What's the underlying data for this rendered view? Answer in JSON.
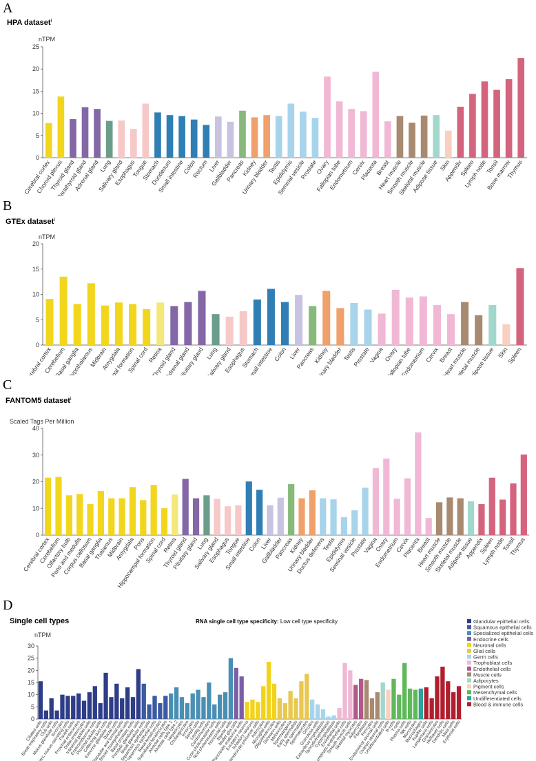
{
  "panels": [
    {
      "letter": "A",
      "title": "HPA dataset",
      "title_sup": "i"
    },
    {
      "letter": "B",
      "title": "GTEx dataset",
      "title_sup": "i"
    },
    {
      "letter": "C",
      "title": "FANTOM5 dataset",
      "title_sup": "i"
    },
    {
      "letter": "D",
      "title": "Single cell types"
    }
  ],
  "panel_d_header": {
    "label": "RNA single cell type specificity:",
    "value": "Low cell type specificity"
  },
  "colors": {
    "brain": "#f2d61e",
    "brain_light": "#f6e77a",
    "endocrine": "#8467a6",
    "lung": "#6a9d8a",
    "proximal_gi": "#f6c8c8",
    "gi": "#2f7fb5",
    "liver": "#c7c3e0",
    "pancreas": "#86b97a",
    "kidney": "#f0a06a",
    "male": "#a7d4eb",
    "female": "#f0b8d4",
    "muscle": "#a88a70",
    "adipose": "#a2d7cc",
    "skin": "#f8cfc0",
    "lymphoid": "#d4647e"
  },
  "chart_data": [
    {
      "type": "bar",
      "title": "HPA dataset",
      "ylabel": "nTPM",
      "ylim": [
        0,
        25
      ],
      "yticks": [
        0,
        5,
        10,
        15,
        20,
        25
      ],
      "grid": false,
      "categories": [
        "Cerebral cortex",
        "Choroid plexus",
        "Thyroid gland",
        "Parathyroid gland",
        "Adrenal gland",
        "Lung",
        "Salivary gland",
        "Esophagus",
        "Tongue",
        "Stomach",
        "Duodenum",
        "Small intestine",
        "Colon",
        "Rectum",
        "Liver",
        "Gallbladder",
        "Pancreas",
        "Kidney",
        "Urinary bladder",
        "Testis",
        "Epididymis",
        "Seminal vesicle",
        "Prostate",
        "Ovary",
        "Fallopian tube",
        "Endometrium",
        "Cervix",
        "Placenta",
        "Breast",
        "Heart muscle",
        "Smooth muscle",
        "Skeletal muscle",
        "Adipose tissue",
        "Skin",
        "Appendix",
        "Spleen",
        "Lymph node",
        "Tonsil",
        "Bone marrow",
        "Thymus"
      ],
      "values": [
        7.8,
        13.8,
        8.7,
        11.4,
        11.0,
        8.3,
        8.4,
        6.5,
        12.2,
        10.2,
        9.6,
        9.4,
        8.6,
        7.4,
        9.3,
        8.1,
        10.6,
        9.1,
        9.6,
        9.4,
        12.2,
        10.4,
        9.0,
        18.3,
        12.7,
        11.0,
        10.5,
        19.4,
        8.2,
        9.4,
        7.9,
        9.5,
        9.6,
        6.1,
        11.5,
        14.4,
        17.2,
        15.3,
        17.7,
        22.5
      ],
      "bar_colors": [
        "#f2d61e",
        "#f2d61e",
        "#8467a6",
        "#8467a6",
        "#8467a6",
        "#6a9d8a",
        "#f6c8c8",
        "#f6c8c8",
        "#f6c8c8",
        "#2f7fb5",
        "#2f7fb5",
        "#2f7fb5",
        "#2f7fb5",
        "#2f7fb5",
        "#c7c3e0",
        "#c7c3e0",
        "#86b97a",
        "#f0a06a",
        "#f0a06a",
        "#a7d4eb",
        "#a7d4eb",
        "#a7d4eb",
        "#a7d4eb",
        "#f0b8d4",
        "#f0b8d4",
        "#f0b8d4",
        "#f0b8d4",
        "#f0b8d4",
        "#f0b8d4",
        "#a88a70",
        "#a88a70",
        "#a88a70",
        "#a2d7cc",
        "#f8cfc0",
        "#d4647e",
        "#d4647e",
        "#d4647e",
        "#d4647e",
        "#d4647e",
        "#d4647e"
      ]
    },
    {
      "type": "bar",
      "title": "GTEx dataset",
      "ylabel": "nTPM",
      "ylim": [
        0,
        20
      ],
      "yticks": [
        0,
        5,
        10,
        15,
        20
      ],
      "grid": false,
      "categories": [
        "Cerebral cortex",
        "Cerebellum",
        "Basal ganglia",
        "Hypothalamus",
        "Midbrain",
        "Amygdala",
        "Hippocampal formation",
        "Spinal cord",
        "Retina",
        "Thyroid gland",
        "Adrenal gland",
        "Pituitary gland",
        "Lung",
        "Salivary gland",
        "Esophagus",
        "Stomach",
        "Small intestine",
        "Colon",
        "Liver",
        "Pancreas",
        "Kidney",
        "Urinary bladder",
        "Testis",
        "Prostate",
        "Vagina",
        "Ovary",
        "Fallopian tube",
        "Endometrium",
        "Cervix",
        "Breast",
        "Heart muscle",
        "Skeletal muscle",
        "Adipose tissue",
        "Skin",
        "Spleen"
      ],
      "values": [
        9.1,
        13.5,
        8.1,
        12.2,
        7.8,
        8.4,
        8.1,
        7.1,
        8.4,
        7.7,
        8.5,
        10.7,
        6.1,
        5.6,
        6.7,
        9.0,
        11.1,
        8.5,
        9.9,
        7.7,
        10.7,
        7.3,
        8.3,
        7.0,
        6.2,
        10.9,
        9.4,
        9.6,
        7.9,
        6.1,
        8.5,
        5.9,
        7.9,
        4.1,
        15.2
      ],
      "bar_colors": [
        "#f2d61e",
        "#f2d61e",
        "#f2d61e",
        "#f2d61e",
        "#f2d61e",
        "#f2d61e",
        "#f2d61e",
        "#f2d61e",
        "#f6e77a",
        "#8467a6",
        "#8467a6",
        "#8467a6",
        "#6a9d8a",
        "#f6c8c8",
        "#f6c8c8",
        "#2f7fb5",
        "#2f7fb5",
        "#2f7fb5",
        "#c7c3e0",
        "#86b97a",
        "#f0a06a",
        "#f0a06a",
        "#a7d4eb",
        "#a7d4eb",
        "#f0b8d4",
        "#f0b8d4",
        "#f0b8d4",
        "#f0b8d4",
        "#f0b8d4",
        "#f0b8d4",
        "#a88a70",
        "#a88a70",
        "#a2d7cc",
        "#f8cfc0",
        "#d4647e"
      ]
    },
    {
      "type": "bar",
      "title": "FANTOM5 dataset",
      "ylabel": "Scaled Tags Per Million",
      "ylim": [
        0,
        40
      ],
      "yticks": [
        0,
        10,
        20,
        30,
        40
      ],
      "grid": false,
      "categories": [
        "Cerebral cortex",
        "Cerebellum",
        "Olfactory bulb",
        "Pons and medulla",
        "Corpus callosum",
        "Basal ganglia",
        "Thalamus",
        "Midbrain",
        "Amygdala",
        "Pons",
        "Hippocampal formation",
        "Spinal cord",
        "Retina",
        "Thyroid gland",
        "Pituitary gland",
        "Lung",
        "Salivary gland",
        "Esophagus",
        "Tongue",
        "Small intestine",
        "Colon",
        "Liver",
        "Gallbladder",
        "Pancreas",
        "Kidney",
        "Urinary bladder",
        "Ductus deferens",
        "Testis",
        "Epididymis",
        "Seminal vesicle",
        "Prostate",
        "Vagina",
        "Ovary",
        "Endometrium",
        "Cervix",
        "Placenta",
        "Breast",
        "Heart muscle",
        "Smooth muscle",
        "Skeletal muscle",
        "Adipose tissue",
        "Appendix",
        "Spleen",
        "Lymph node",
        "Tonsil",
        "Thymus"
      ],
      "values": [
        21.5,
        21.8,
        14.9,
        15.4,
        11.6,
        16.5,
        13.8,
        13.8,
        18.0,
        13.1,
        18.8,
        10.1,
        15.2,
        21.1,
        13.8,
        14.9,
        13.6,
        10.8,
        11.2,
        20.1,
        17.0,
        11.2,
        14.0,
        19.1,
        13.8,
        16.8,
        13.8,
        13.4,
        6.7,
        9.3,
        17.8,
        25.1,
        28.7,
        13.6,
        21.3,
        38.5,
        6.4,
        12.3,
        14.1,
        13.8,
        12.7,
        11.6,
        21.5,
        13.3,
        19.4,
        30.2
      ],
      "bar_colors": [
        "#f2d61e",
        "#f2d61e",
        "#f2d61e",
        "#f2d61e",
        "#f2d61e",
        "#f2d61e",
        "#f2d61e",
        "#f2d61e",
        "#f2d61e",
        "#f2d61e",
        "#f2d61e",
        "#f2d61e",
        "#f6e77a",
        "#8467a6",
        "#8467a6",
        "#6a9d8a",
        "#f6c8c8",
        "#f6c8c8",
        "#f6c8c8",
        "#2f7fb5",
        "#2f7fb5",
        "#c7c3e0",
        "#c7c3e0",
        "#86b97a",
        "#f0a06a",
        "#f0a06a",
        "#a7d4eb",
        "#a7d4eb",
        "#a7d4eb",
        "#a7d4eb",
        "#a7d4eb",
        "#f0b8d4",
        "#f0b8d4",
        "#f0b8d4",
        "#f0b8d4",
        "#f0b8d4",
        "#f0b8d4",
        "#a88a70",
        "#a88a70",
        "#a88a70",
        "#a2d7cc",
        "#d4647e",
        "#d4647e",
        "#d4647e",
        "#d4647e",
        "#d4647e"
      ]
    },
    {
      "type": "bar",
      "title": "Single cell types",
      "ylabel": "nTPM",
      "ylim": [
        0,
        30
      ],
      "yticks": [
        0,
        5,
        10,
        15,
        20,
        25,
        30
      ],
      "grid": false,
      "legend_position": "right",
      "legend": [
        {
          "label": "Glandular epithelial cells",
          "color": "#2e3d87"
        },
        {
          "label": "Squamous epithelial cells",
          "color": "#3b5aa3"
        },
        {
          "label": "Specialized epithelial cells",
          "color": "#4a8fb3"
        },
        {
          "label": "Endocrine cells",
          "color": "#7b5ea7"
        },
        {
          "label": "Neuronal cells",
          "color": "#f2d31a"
        },
        {
          "label": "Glial cells",
          "color": "#e8c850"
        },
        {
          "label": "Germ cells",
          "color": "#a7d4eb"
        },
        {
          "label": "Trophoblast cells",
          "color": "#f0b8d4"
        },
        {
          "label": "Endothelial cells",
          "color": "#b05a8a"
        },
        {
          "label": "Muscle cells",
          "color": "#a88a70"
        },
        {
          "label": "Adipocytes",
          "color": "#a2d7cc"
        },
        {
          "label": "Pigment cells",
          "color": "#f8cfc0"
        },
        {
          "label": "Mesenchymal cells",
          "color": "#5fb85a"
        },
        {
          "label": "Undifferentiated cells",
          "color": "#2aa39a"
        },
        {
          "label": "Blood & immune cells",
          "color": "#b01e2d"
        }
      ],
      "categories": [
        "Ciliated cells",
        "Basal respiratory cells",
        "Club cells",
        "Mucus glandular cells",
        "Ionocytes",
        "Gastric mucus-secreting cells",
        "Paneth cells",
        "Proximal enterocytes",
        "Distal enterocytes",
        "Intestinal goblet cells",
        "Enteroendocrine cells",
        "Proximal tubular cells",
        "Collecting duct cells",
        "Exocrine glandular cells",
        "Ductal cells",
        "Glandular and luminal cells",
        "Breast myoepithelial cells",
        "Basal prostatic cells",
        "Prostatic glandular cells",
        "Basal glandular cells",
        "Squamous epithelial cells",
        "Basal squamous epithelial cells",
        "Basal keratinocytes",
        "Suprabasal keratinocytes",
        "Alveolar cells type 1",
        "Alveolar cells type 2",
        "Hepatocytes",
        "Cholangiocytes",
        "Ionocytes",
        "Sertoli cells",
        "Leydig cells",
        "Cardiomyocytes",
        "Cone photoreceptor cells",
        "Rod photoreceptor cells",
        "Horizontal cells",
        "Bipolar cells",
        "Muller glia cells",
        "Pancreatic endocrine cells",
        "Excitatory neurons",
        "Inhibitory neurons",
        "Oligodendrocyte precursor cells",
        "Astrocytes",
        "Microglial cells",
        "Oligodendrocytes",
        "Schwann cells",
        "Melanocytes",
        "Spermatogonia",
        "Early spermatids",
        "Late spermatids",
        "Spermatocytes",
        "Oocytes",
        "Granulosa cells",
        "Extravillous trophoblasts",
        "Syncytiotrophoblasts",
        "Cytotrophoblasts",
        "Endothelial cells",
        "Lymphatic endothelial cells",
        "Smooth muscle cells",
        "Skeletal myocytes",
        "Adipocytes",
        "Fibroblasts",
        "Pericytes",
        "Endometrial stromal cells",
        "Ovarian stromal cells",
        "Undifferentiated cells",
        "B-cells",
        "T-cells",
        "Plasma cells",
        "NK-cells",
        "Monocytes",
        "Macrophages",
        "Kupffer cells",
        "Langerhans cells",
        "Granulocytes",
        "Hofbauer cells",
        "Dendritic cells",
        "Mast cells",
        "Erythroid cells"
      ],
      "values": [
        15.5,
        3.5,
        8.5,
        3.5,
        10.0,
        9.5,
        9.5,
        10.5,
        7.5,
        11.0,
        13.5,
        6.5,
        19.0,
        9.0,
        14.5,
        8.5,
        13.0,
        9.0,
        20.5,
        14.5,
        6.0,
        9.5,
        6.5,
        9.5,
        10.5,
        13.0,
        9.0,
        6.5,
        10.5,
        12.0,
        9.0,
        15.0,
        6.0,
        10.0,
        11.0,
        25.0,
        21.0,
        17.5,
        7.0,
        8.0,
        7.0,
        13.5,
        23.5,
        14.5,
        8.5,
        6.5,
        11.5,
        8.5,
        15.5,
        18.5,
        8.0,
        6.0,
        4.0,
        1.0,
        1.5,
        4.5,
        23.0,
        20.0,
        14.0,
        16.5,
        16.0,
        8.5,
        11.0,
        15.0,
        12.0,
        16.5,
        10.0,
        23.0,
        12.5,
        12.0,
        12.5,
        13.0,
        8.5,
        17.5,
        21.5,
        15.5,
        11.0,
        13.5
      ],
      "bar_colors": [
        "#2e3d87",
        "#2e3d87",
        "#2e3d87",
        "#2e3d87",
        "#2e3d87",
        "#2e3d87",
        "#2e3d87",
        "#2e3d87",
        "#2e3d87",
        "#2e3d87",
        "#2e3d87",
        "#2e3d87",
        "#2e3d87",
        "#2e3d87",
        "#2e3d87",
        "#2e3d87",
        "#2e3d87",
        "#2e3d87",
        "#2e3d87",
        "#3b5aa3",
        "#3b5aa3",
        "#3b5aa3",
        "#3b5aa3",
        "#3b5aa3",
        "#4a8fb3",
        "#4a8fb3",
        "#4a8fb3",
        "#4a8fb3",
        "#4a8fb3",
        "#4a8fb3",
        "#4a8fb3",
        "#4a8fb3",
        "#4a8fb3",
        "#4a8fb3",
        "#4a8fb3",
        "#4a8fb3",
        "#7b5ea7",
        "#7b5ea7",
        "#f2d31a",
        "#f2d31a",
        "#f2d31a",
        "#f2d31a",
        "#f2d31a",
        "#f2d31a",
        "#e8c850",
        "#e8c850",
        "#e8c850",
        "#e8c850",
        "#e8c850",
        "#e8c850",
        "#a7d4eb",
        "#a7d4eb",
        "#a7d4eb",
        "#a7d4eb",
        "#a7d4eb",
        "#f0b8d4",
        "#f0b8d4",
        "#f0b8d4",
        "#b05a8a",
        "#b05a8a",
        "#a88a70",
        "#a88a70",
        "#a88a70",
        "#a2d7cc",
        "#f8cfc0",
        "#5fb85a",
        "#5fb85a",
        "#5fb85a",
        "#5fb85a",
        "#5fb85a",
        "#2aa39a",
        "#b01e2d",
        "#b01e2d",
        "#b01e2d",
        "#b01e2d",
        "#b01e2d",
        "#b01e2d",
        "#b01e2d"
      ]
    }
  ]
}
